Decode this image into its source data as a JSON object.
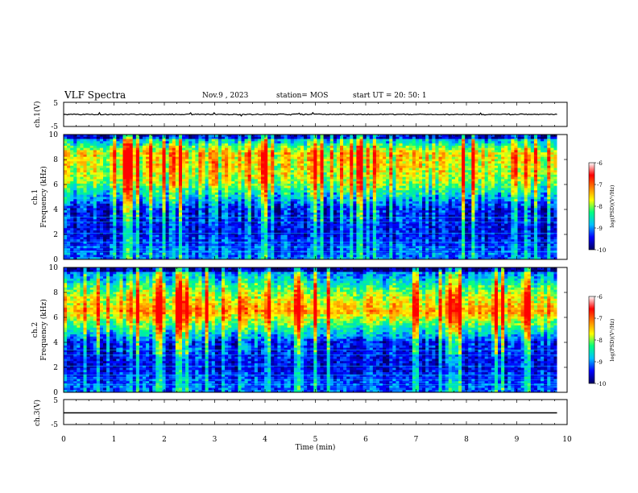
{
  "header": {
    "title": "VLF Spectra",
    "date": "Nov.9 , 2023",
    "station": "station= MOS",
    "start_time": "start UT = 20: 50: 1"
  },
  "colors": {
    "colormap": [
      "#000060",
      "#0000ff",
      "#00c0ff",
      "#00ff80",
      "#ffff00",
      "#ff8000",
      "#ff0000",
      "#ffffff"
    ]
  },
  "chart_data": [
    {
      "type": "line",
      "panel": "ch1-waveform",
      "ylabel": "ch.1(V)",
      "ylim": [
        -5,
        5
      ],
      "y_ticks": [
        "5",
        "-5"
      ],
      "baseline": 0,
      "series": [
        {
          "description_level": 0
        }
      ]
    },
    {
      "type": "heatmap",
      "panel": "ch1-spectrogram",
      "ylabel_line1": "ch.1",
      "ylabel_line2": "Frequency (kHz)",
      "ylim": [
        0,
        10
      ],
      "y_ticks": [
        "0",
        "2",
        "4",
        "6",
        "8",
        "10"
      ],
      "xlim": [
        0,
        10
      ],
      "data_end_min": 9.8,
      "band_profile": [
        {
          "f": 0.5,
          "level": 0.25
        },
        {
          "f": 2,
          "level": 0.15
        },
        {
          "f": 4,
          "level": 0.15
        },
        {
          "f": 5,
          "level": 0.35
        },
        {
          "f": 6,
          "level": 0.55
        },
        {
          "f": 7,
          "level": 0.65
        },
        {
          "f": 8.5,
          "level": 0.7
        },
        {
          "f": 9.5,
          "level": 0.35
        }
      ],
      "colorbar": {
        "ticks": [
          "-6",
          "-7",
          "-8",
          "-9",
          "-10"
        ],
        "label": "log(PSD)(V²/Hz)",
        "range": [
          -10,
          -6
        ]
      }
    },
    {
      "type": "heatmap",
      "panel": "ch2-spectrogram",
      "ylabel_line1": "ch.2",
      "ylabel_line2": "Frequency (kHz)",
      "ylim": [
        0,
        10
      ],
      "y_ticks": [
        "0",
        "2",
        "4",
        "6",
        "8",
        "10"
      ],
      "xlim": [
        0,
        10
      ],
      "data_end_min": 9.8,
      "band_profile": [
        {
          "f": 0.5,
          "level": 0.25
        },
        {
          "f": 2,
          "level": 0.15
        },
        {
          "f": 4,
          "level": 0.2
        },
        {
          "f": 5,
          "level": 0.45
        },
        {
          "f": 6.5,
          "level": 0.8
        },
        {
          "f": 8,
          "level": 0.6
        },
        {
          "f": 9.5,
          "level": 0.3
        }
      ],
      "colorbar": {
        "ticks": [
          "-6",
          "-7",
          "-8",
          "-9",
          "-10"
        ],
        "label": "log(PSD)(V²/Hz)",
        "range": [
          -10,
          -6
        ]
      }
    },
    {
      "type": "line",
      "panel": "ch3-waveform",
      "ylabel": "ch.3(V)",
      "ylim": [
        -5,
        5
      ],
      "y_ticks": [
        "5",
        "-5"
      ],
      "baseline": 0,
      "series": [
        {
          "description_level": 0
        }
      ]
    }
  ],
  "x_axis": {
    "label": "Time (min)",
    "ticks": [
      "0",
      "1",
      "2",
      "3",
      "4",
      "5",
      "6",
      "7",
      "8",
      "9",
      "10"
    ],
    "range": [
      0,
      10
    ]
  }
}
